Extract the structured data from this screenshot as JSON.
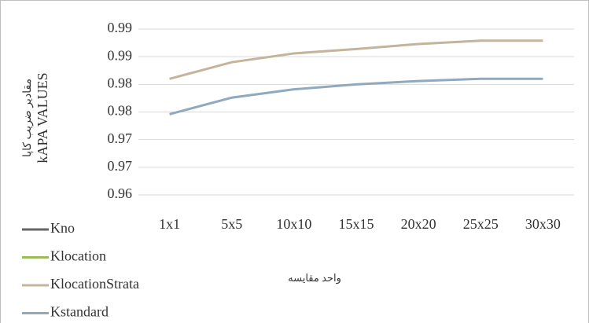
{
  "chart_data": {
    "type": "line",
    "y_label_lines": [
      "مقادیر ضریب کاپا",
      "kAPA VALUES"
    ],
    "x_label": "واحد مقایسه",
    "categories": [
      "1x1",
      "5x5",
      "10x10",
      "15x15",
      "20x20",
      "25x25",
      "30x30"
    ],
    "series": [
      {
        "name": "Kno",
        "color": "#666666",
        "values": [
          null,
          null,
          null,
          null,
          null,
          null,
          null
        ]
      },
      {
        "name": "Klocation",
        "color": "#9bbb59",
        "values": [
          null,
          null,
          null,
          null,
          null,
          null,
          null
        ]
      },
      {
        "name": "KlocationStrata",
        "color": "#c4b49b",
        "values": [
          0.981,
          0.984,
          0.9856,
          0.9864,
          0.9873,
          0.9879,
          0.9879
        ]
      },
      {
        "name": "Kstandard",
        "color": "#8fa9bf",
        "values": [
          0.9746,
          0.9776,
          0.9791,
          0.98,
          0.9806,
          0.981,
          0.981
        ]
      }
    ],
    "ylim": [
      0.96,
      0.99
    ],
    "yticks": [
      {
        "value": 0.96,
        "label": "0.96"
      },
      {
        "value": 0.965,
        "label": "0.97"
      },
      {
        "value": 0.97,
        "label": "0.97"
      },
      {
        "value": 0.975,
        "label": "0.98"
      },
      {
        "value": 0.98,
        "label": "0.98"
      },
      {
        "value": 0.985,
        "label": "0.99"
      },
      {
        "value": 0.99,
        "label": "0.99"
      }
    ],
    "grid": true
  }
}
